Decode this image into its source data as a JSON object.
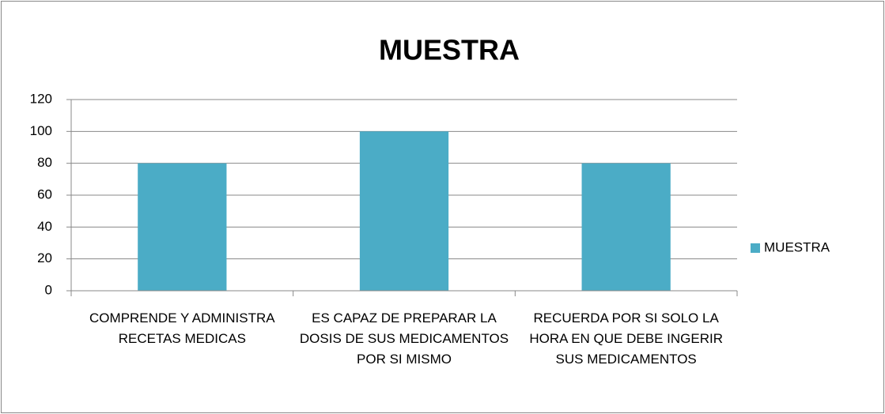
{
  "chart_data": {
    "type": "bar",
    "title": "MUESTRA",
    "categories": [
      "COMPRENDE Y ADMINISTRA RECETAS MEDICAS",
      "ES CAPAZ DE PREPARAR LA DOSIS DE SUS MEDICAMENTOS POR SI MISMO",
      "RECUERDA POR SI SOLO LA HORA EN QUE DEBE INGERIR SUS MEDICAMENTOS"
    ],
    "series": [
      {
        "name": "MUESTRA",
        "color": "#4bacc6",
        "values": [
          80,
          100,
          80
        ]
      }
    ],
    "ylim": [
      0,
      120
    ],
    "yticks": [
      0,
      20,
      40,
      60,
      80,
      100,
      120
    ],
    "grid": true,
    "legend": "right"
  }
}
